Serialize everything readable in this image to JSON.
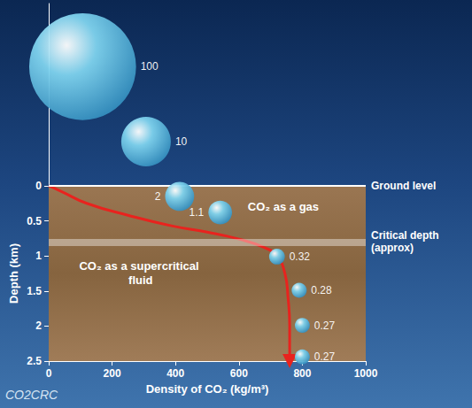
{
  "chart_data": {
    "type": "line",
    "x_label": "Density of CO₂ (kg/m³)",
    "y_label": "Depth (km)",
    "xlim": [
      0,
      1000
    ],
    "xticks": [
      0,
      200,
      400,
      600,
      800,
      1000
    ],
    "ylim": [
      2.5,
      -2.6
    ],
    "yticks": [
      0,
      0.5,
      1,
      1.5,
      2,
      2.5
    ],
    "grid": false,
    "series": [
      {
        "type": "line",
        "color": "#e8231e",
        "line_style": "solid",
        "marker": "arrow",
        "x": [
          0,
          40,
          120,
          250,
          387,
          500,
          600,
          680,
          720,
          745,
          755,
          760,
          760
        ],
        "values": [
          0,
          0.08,
          0.25,
          0.42,
          0.57,
          0.66,
          0.76,
          0.88,
          1.0,
          1.25,
          1.6,
          2.0,
          2.5
        ]
      },
      {
        "type": "scatter",
        "color": "#7fd3ee",
        "marker": "circle",
        "data_labels": true,
        "x": [
          107,
          307,
          413,
          541,
          720,
          790,
          800,
          800
        ],
        "values": [
          -1.7,
          -0.63,
          0.15,
          0.38,
          1.01,
          1.49,
          1.99,
          2.44
        ],
        "volumes": [
          100,
          10,
          2,
          1.1,
          0.32,
          0.28,
          0.27,
          0.27
        ]
      }
    ],
    "ground_level": {
      "label": "Ground level",
      "value": 0
    },
    "critical_depth": {
      "label": "Critical depth (approx)",
      "value": 0.8
    },
    "annotations": [
      "CO₂ as a gas",
      "CO₂ as a supercritical fluid"
    ],
    "credit": "CO2CRC"
  }
}
